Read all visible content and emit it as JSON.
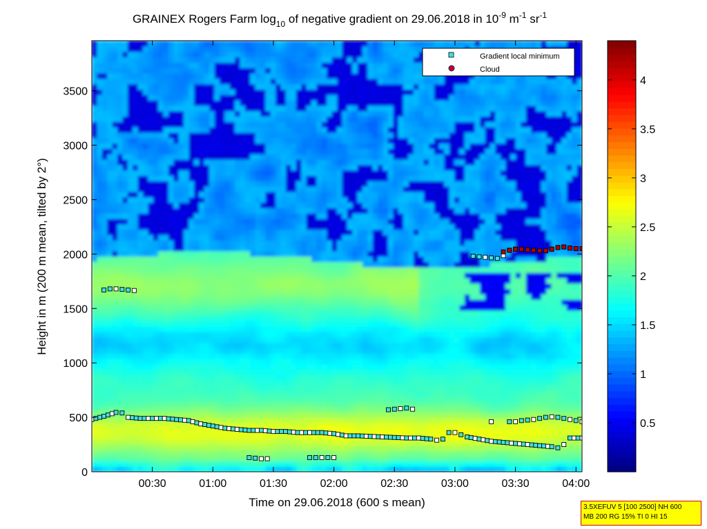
{
  "chart_data": {
    "type": "heatmap",
    "title": {
      "prefix": "GRAINEX Rogers Farm log",
      "sub": "10",
      "middle": " of negative gradient on 29.06.2018 in 10",
      "exp1": "-9",
      "unit1": " m",
      "exp2": "-1",
      "unit2": " sr",
      "exp3": "-1"
    },
    "xlabel": "Time on 29.06.2018 (600 s mean)",
    "ylabel": "Height in m (200 m mean, tilted by 2°)",
    "xlim_hours": [
      0.0,
      4.05
    ],
    "ylim_m": [
      0,
      3960
    ],
    "x_ticks": [
      {
        "h": 0.5,
        "label": "00:30"
      },
      {
        "h": 1.0,
        "label": "01:00"
      },
      {
        "h": 1.5,
        "label": "01:30"
      },
      {
        "h": 2.0,
        "label": "02:00"
      },
      {
        "h": 2.5,
        "label": "02:30"
      },
      {
        "h": 3.0,
        "label": "03:00"
      },
      {
        "h": 3.5,
        "label": "03:30"
      },
      {
        "h": 4.0,
        "label": "04:00"
      }
    ],
    "y_ticks": [
      0,
      500,
      1000,
      1500,
      2000,
      2500,
      3000,
      3500
    ],
    "colorbar": {
      "range": [
        0.0,
        4.4
      ],
      "ticks": [
        0.5,
        1,
        1.5,
        2,
        2.5,
        3,
        3.5,
        4
      ],
      "colormap": "jet"
    },
    "legend": {
      "position": "top-right",
      "entries": [
        {
          "label": "Gradient local minimum",
          "marker": "square",
          "color": "#40e0e0"
        },
        {
          "label": "Cloud",
          "marker": "circle",
          "color": "#d00000"
        }
      ]
    },
    "gradient_minimum_series": [
      {
        "x": [
          0.0,
          0.1,
          0.2,
          0.25,
          0.3,
          0.4,
          0.5,
          0.6,
          0.7,
          0.8,
          0.9,
          1.0,
          1.1,
          1.2,
          1.3,
          1.4,
          1.5,
          1.6,
          1.7,
          1.8,
          1.9,
          2.0,
          2.1,
          2.2,
          2.3,
          2.4,
          2.5,
          2.6,
          2.7,
          2.8,
          2.85,
          2.9,
          2.95,
          3.0,
          3.05,
          3.1,
          3.2,
          3.3,
          3.4,
          3.5,
          3.6,
          3.7,
          3.8,
          3.85,
          3.9,
          3.95,
          4.05
        ],
        "y": [
          480,
          510,
          545,
          540,
          500,
          490,
          490,
          490,
          480,
          470,
          440,
          420,
          400,
          390,
          380,
          380,
          370,
          370,
          360,
          360,
          360,
          350,
          330,
          330,
          325,
          320,
          315,
          310,
          310,
          300,
          290,
          300,
          360,
          360,
          340,
          320,
          300,
          280,
          270,
          260,
          250,
          240,
          230,
          220,
          250,
          310,
          310
        ]
      },
      {
        "x": [
          0.1,
          0.15,
          0.2,
          0.25,
          0.3,
          0.35
        ],
        "y": [
          1670,
          1680,
          1680,
          1675,
          1670,
          1665
        ]
      },
      {
        "x": [
          3.15,
          3.2,
          3.25,
          3.3,
          3.35,
          3.4
        ],
        "y": [
          1980,
          1975,
          1970,
          1965,
          1960,
          1985
        ]
      },
      {
        "x": [
          2.45,
          2.5,
          2.55,
          2.6,
          2.65
        ],
        "y": [
          570,
          575,
          580,
          585,
          575
        ]
      },
      {
        "x": [
          1.3,
          1.35,
          1.4,
          1.45
        ],
        "y": [
          130,
          125,
          120,
          120
        ]
      },
      {
        "x": [
          1.8,
          1.85,
          1.9,
          1.95,
          2.0
        ],
        "y": [
          130,
          130,
          130,
          130,
          130
        ]
      },
      {
        "x": [
          3.3
        ],
        "y": [
          460
        ]
      },
      {
        "x": [
          3.45,
          3.5,
          3.55,
          3.6,
          3.65,
          3.7,
          3.75,
          3.8,
          3.85,
          3.9,
          3.95,
          4.0,
          4.05
        ],
        "y": [
          460,
          460,
          470,
          475,
          480,
          490,
          500,
          505,
          500,
          490,
          480,
          470,
          460
        ]
      }
    ],
    "cloud_series": {
      "x": [
        3.4,
        3.45,
        3.5,
        3.55,
        3.6,
        3.65,
        3.7,
        3.75,
        3.8,
        3.85,
        3.9,
        3.95,
        4.0,
        4.05
      ],
      "y": [
        2020,
        2035,
        2045,
        2045,
        2040,
        2035,
        2030,
        2030,
        2045,
        2060,
        2065,
        2055,
        2050,
        2050
      ]
    }
  },
  "param_box": {
    "line1": "3.5XEFUV 5 [100 2500] NH 600",
    "line2": "MB 200 RG 15% TI 0 HI 15"
  }
}
